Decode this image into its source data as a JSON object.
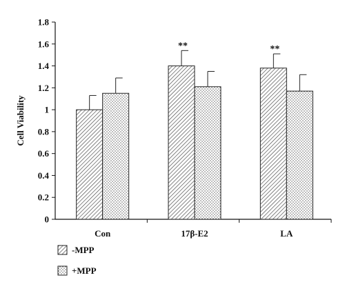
{
  "chart_data": {
    "type": "bar",
    "title": "",
    "xlabel": "",
    "ylabel": "Cell Viability",
    "ylim": [
      0,
      1.8
    ],
    "yticks": [
      "0",
      "0.2",
      "0.4",
      "0.6",
      "0.8",
      "1",
      "1.2",
      "1.4",
      "1.6",
      "1.8"
    ],
    "categories": [
      "Con",
      "17β-E2",
      "LA"
    ],
    "series": [
      {
        "name": "-MPP",
        "values": [
          1.0,
          1.4,
          1.38
        ],
        "errors": [
          0.13,
          0.14,
          0.13
        ],
        "pattern": "hatch"
      },
      {
        "name": "+MPP",
        "values": [
          1.15,
          1.21,
          1.17
        ],
        "errors": [
          0.14,
          0.14,
          0.15
        ],
        "pattern": "dots"
      }
    ],
    "annotations": [
      "",
      "**",
      "**"
    ],
    "legend_position": "bottom-left",
    "grid": false
  }
}
